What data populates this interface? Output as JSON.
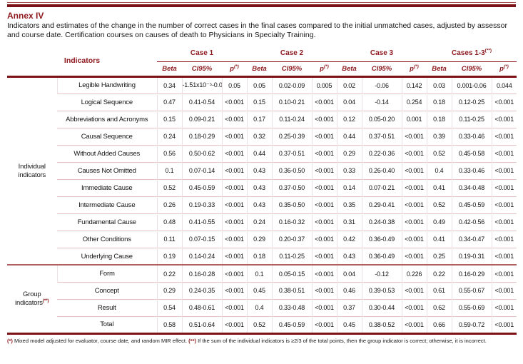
{
  "page": {
    "annex_label": "Annex IV",
    "description": "Indicators and estimates of the change in the number of correct cases in the final cases compared to the initial unmatched cases, adjusted by assessor and course date. Certification courses on causes of death to Physicians in Specialty Training."
  },
  "colors": {
    "accent_maroon": "#8d181d",
    "rule_dark": "#7c1216",
    "row_separator_pink": "#e7c4c4",
    "group_divider": "#ae5f5f"
  },
  "table": {
    "indicators_header": "Indicators",
    "col_groups": [
      {
        "label": "Case 1",
        "sup": ""
      },
      {
        "label": "Case 2",
        "sup": ""
      },
      {
        "label": "Case 3",
        "sup": ""
      },
      {
        "label": "Cases 1-3",
        "sup": "(**)"
      }
    ],
    "sub_headers": {
      "beta": "Beta",
      "ci": "CI95%",
      "p": "p",
      "p_sup": "(*)"
    },
    "row_groups": [
      {
        "label": "Individual indicators",
        "sup": "",
        "rows": [
          {
            "name": "Legible Handwriting",
            "cells": [
              "0.34",
              "-1.51x10⁻⁵-0.07",
              "0.05",
              "0.05",
              "0.02-0.09",
              "0.005",
              "0.02",
              "-0.06",
              "0.142",
              "0.03",
              "0.001-0.06",
              "0.044"
            ]
          },
          {
            "name": "Logical Sequence",
            "cells": [
              "0.47",
              "0.41-0.54",
              "<0.001",
              "0.15",
              "0.10-0.21",
              "<0.001",
              "0.04",
              "-0.14",
              "0.254",
              "0.18",
              "0.12-0.25",
              "<0.001"
            ]
          },
          {
            "name": "Abbreviations and Acronyms",
            "cells": [
              "0.15",
              "0.09-0.21",
              "<0.001",
              "0.17",
              "0.11-0.24",
              "<0.001",
              "0.12",
              "0.05-0.20",
              "0.001",
              "0.18",
              "0.11-0.25",
              "<0.001"
            ]
          },
          {
            "name": "Causal Sequence",
            "cells": [
              "0.24",
              "0.18-0.29",
              "<0.001",
              "0.32",
              "0.25-0.39",
              "<0.001",
              "0.44",
              "0.37-0.51",
              "<0.001",
              "0.39",
              "0.33-0.46",
              "<0.001"
            ]
          },
          {
            "name": "Without Added Causes",
            "cells": [
              "0.56",
              "0.50-0.62",
              "<0.001",
              "0.44",
              "0.37-0.51",
              "<0.001",
              "0.29",
              "0.22-0.36",
              "<0.001",
              "0.52",
              "0.45-0.58",
              "<0.001"
            ]
          },
          {
            "name": "Causes Not Omitted",
            "cells": [
              "0.1",
              "0.07-0.14",
              "<0.001",
              "0.43",
              "0.36-0.50",
              "<0.001",
              "0.33",
              "0.26-0.40",
              "<0.001",
              "0.4",
              "0.33-0.46",
              "<0.001"
            ]
          },
          {
            "name": "Immediate Cause",
            "cells": [
              "0.52",
              "0.45-0.59",
              "<0.001",
              "0.43",
              "0.37-0.50",
              "<0.001",
              "0.14",
              "0.07-0.21",
              "<0.001",
              "0.41",
              "0.34-0.48",
              "<0.001"
            ]
          },
          {
            "name": "Intermediate Cause",
            "cells": [
              "0.26",
              "0.19-0.33",
              "<0.001",
              "0.43",
              "0.35-0.50",
              "<0.001",
              "0.35",
              "0.29-0.41",
              "<0.001",
              "0.52",
              "0.45-0.59",
              "<0.001"
            ]
          },
          {
            "name": "Fundamental Cause",
            "cells": [
              "0.48",
              "0.41-0.55",
              "<0.001",
              "0.24",
              "0.16-0.32",
              "<0.001",
              "0.31",
              "0.24-0.38",
              "<0.001",
              "0.49",
              "0.42-0.56",
              "<0.001"
            ]
          },
          {
            "name": "Other Conditions",
            "cells": [
              "0.11",
              "0.07-0.15",
              "<0.001",
              "0.29",
              "0.20-0.37",
              "<0.001",
              "0.42",
              "0.36-0.49",
              "<0.001",
              "0.41",
              "0.34-0.47",
              "<0.001"
            ]
          },
          {
            "name": "Underlying Cause",
            "cells": [
              "0.19",
              "0.14-0.24",
              "<0.001",
              "0.18",
              "0.11-0.25",
              "<0.001",
              "0.43",
              "0.36-0.49",
              "<0.001",
              "0.25",
              "0.19-0.31",
              "<0.001"
            ]
          }
        ]
      },
      {
        "label": "Group indicators",
        "sup": "(**)",
        "rows": [
          {
            "name": "Form",
            "cells": [
              "0.22",
              "0.16-0.28",
              "<0.001",
              "0.1",
              "0.05-0.15",
              "<0.001",
              "0.04",
              "-0.12",
              "0.226",
              "0.22",
              "0.16-0.29",
              "<0.001"
            ]
          },
          {
            "name": "Concept",
            "cells": [
              "0.29",
              "0.24-0.35",
              "<0.001",
              "0.45",
              "0.38-0.51",
              "<0.001",
              "0.46",
              "0.39-0.53",
              "<0.001",
              "0.61",
              "0.55-0.67",
              "<0.001"
            ]
          },
          {
            "name": "Result",
            "cells": [
              "0.54",
              "0.48-0.61",
              "<0.001",
              "0.4",
              "0.33-0.48",
              "<0.001",
              "0.37",
              "0.30-0.44",
              "<0.001",
              "0.62",
              "0.55-0.69",
              "<0.001"
            ]
          },
          {
            "name": "Total",
            "cells": [
              "0.58",
              "0.51-0.64",
              "<0.001",
              "0.52",
              "0.45-0.59",
              "<0.001",
              "0.45",
              "0.38-0.52",
              "<0.001",
              "0.66",
              "0.59-0.72",
              "<0.001"
            ]
          }
        ]
      }
    ]
  },
  "footnote": {
    "marker1": "(*)",
    "text1": " Mixed model adjusted for evaluator, course date, and random MIR effect. ",
    "marker2": "(**)",
    "text2": " If the sum of the individual indicators is ≥2/3 of the total points, then the group indicator is correct; otherwise, it is incorrect."
  }
}
